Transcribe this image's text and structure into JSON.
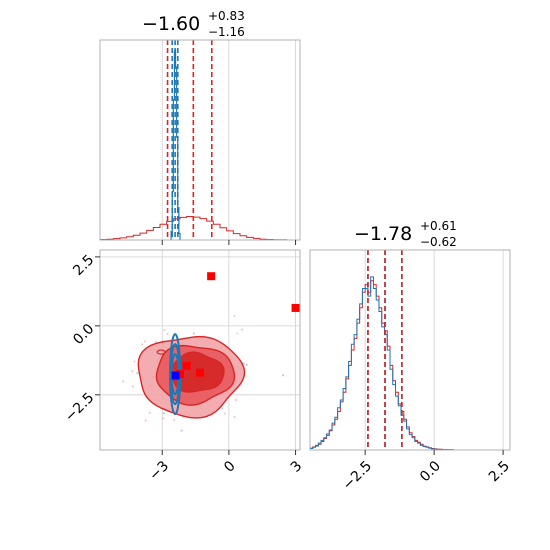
{
  "chart_data": {
    "type": "corner",
    "params": [
      {
        "title": {
          "main": "−1.60",
          "sup": "+0.83",
          "sub": "−1.16"
        },
        "range": [
          -5.8,
          3.2
        ],
        "ticks": [
          -3,
          0,
          3
        ],
        "tick_labels": [
          "−3",
          "0",
          "3"
        ],
        "quantiles_red": [
          -2.76,
          -1.6,
          -0.77
        ],
        "quantiles_blue": [
          -2.55,
          -2.42,
          -2.3
        ]
      },
      {
        "title": {
          "main": "−1.78",
          "sup": "+0.61",
          "sub": "−0.62"
        },
        "range": [
          -4.5,
          2.75
        ],
        "ticks": [
          -2.5,
          0.0,
          2.5
        ],
        "tick_labels": [
          "−2.5",
          "0.0",
          "2.5"
        ],
        "quantiles_red": [
          -2.4,
          -1.78,
          -1.17
        ],
        "quantiles_blue": [
          -2.4,
          -1.78,
          -1.17
        ]
      }
    ],
    "row2_y_ticks": [
      2.5,
      0.0,
      -2.5
    ],
    "row2_y_tick_labels": [
      "2.5",
      "0.0",
      "−2.5"
    ],
    "hist_red_p1": {
      "edges_start": -5.8,
      "bin_width": 0.3,
      "values": [
        0.2,
        0.3,
        0.5,
        0.8,
        1.2,
        1.8,
        2.6,
        3.6,
        4.7,
        5.9,
        7.0,
        7.9,
        8.5,
        8.8,
        8.6,
        8.0,
        7.1,
        5.9,
        4.6,
        3.4,
        2.4,
        1.6,
        1.0,
        0.6,
        0.3,
        0.2,
        0.1,
        0.1,
        0.0,
        0.0
      ]
    },
    "hist_blue_p1": {
      "edges_start": -2.6,
      "bin_width": 0.05,
      "values": [
        8,
        45,
        130,
        175,
        160,
        95,
        30,
        6
      ]
    },
    "hist_p2": {
      "edges_start": -4.5,
      "bin_width": 0.1,
      "red_values": [
        0.5,
        0.8,
        1.2,
        1.5,
        2.2,
        3.0,
        3.8,
        5.0,
        6.5,
        8.0,
        10.0,
        12.5,
        15.0,
        18.5,
        22.0,
        26.0,
        29.0,
        33.0,
        37.0,
        41.0,
        43.0,
        41.0,
        44.0,
        43.0,
        40.0,
        37.0,
        33.0,
        31.0,
        27.0,
        22.0,
        18.0,
        15.0,
        12.0,
        10.0,
        8.0,
        6.0,
        4.5,
        3.5,
        2.5,
        2.0,
        1.5,
        1.0,
        0.8,
        0.6,
        0.4,
        0.3,
        0.2,
        0.2,
        0.1,
        0.1,
        0.1,
        0.1,
        0.0,
        0.0,
        0.0,
        0.0,
        0.0,
        0.0,
        0.0,
        0.0,
        0.0,
        0.0,
        0.0,
        0.0,
        0.0,
        0.0,
        0.0,
        0.0,
        0.0,
        0.0,
        0.0,
        0.0
      ],
      "blue_values": [
        0.4,
        0.7,
        1.0,
        1.8,
        2.5,
        3.2,
        4.2,
        5.2,
        7.0,
        8.5,
        11.0,
        13.0,
        16.0,
        19.0,
        23.0,
        27.5,
        30.0,
        34.0,
        38.0,
        42.0,
        42.0,
        40.0,
        45.0,
        42.0,
        39.0,
        36.0,
        32.0,
        30.0,
        26.0,
        21.0,
        17.0,
        14.0,
        11.5,
        9.0,
        7.5,
        5.5,
        4.0,
        3.2,
        2.2,
        1.8,
        1.2,
        0.9,
        0.7,
        0.5,
        0.3,
        0.2,
        0.2,
        0.1,
        0.1,
        0.1,
        0.0,
        0.0,
        0.0,
        0.0,
        0.0,
        0.0,
        0.0,
        0.0,
        0.0,
        0.0,
        0.0,
        0.0,
        0.0,
        0.0,
        0.0,
        0.0,
        0.0,
        0.0,
        0.0,
        0.0,
        0.0,
        0.0
      ]
    },
    "red_contours": [
      {
        "cx": -1.75,
        "cy": -1.8,
        "rx": 2.35,
        "ry": 1.45,
        "fill": "#f2a3a6",
        "opacity": 0.9
      },
      {
        "cx": -1.55,
        "cy": -1.75,
        "rx": 1.75,
        "ry": 1.05,
        "fill": "#e8585d",
        "opacity": 0.9
      },
      {
        "cx": -1.45,
        "cy": -1.7,
        "rx": 1.2,
        "ry": 0.7,
        "fill": "#d62728",
        "opacity": 0.95
      }
    ],
    "blue_contour": {
      "cx": -2.42,
      "cy": -1.75,
      "rx": 0.14,
      "ry": 1.45
    },
    "red_markers": [
      {
        "x": -0.8,
        "y": 1.8
      },
      {
        "x": 3.0,
        "y": 0.65
      },
      {
        "x": -1.9,
        "y": -1.45
      },
      {
        "x": -1.3,
        "y": -1.7
      },
      {
        "x": -2.2,
        "y": -1.75
      }
    ],
    "blue_markers": [
      {
        "x": -2.4,
        "y": -1.8
      }
    ],
    "colors": {
      "red": "#d62728",
      "blue": "#1f77b4",
      "grid": "#d0d0d0",
      "axis": "#b0b0b0"
    },
    "grid": true
  }
}
